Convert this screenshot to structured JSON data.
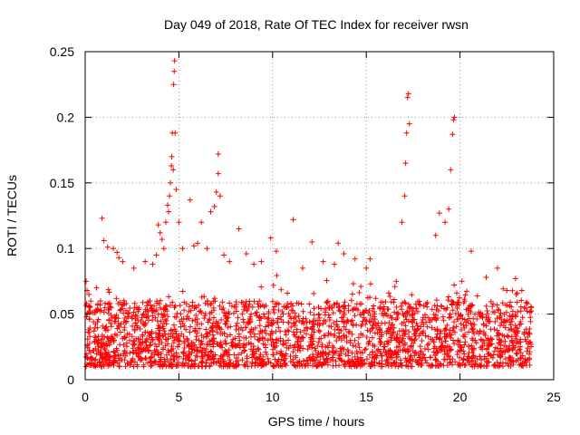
{
  "chart_data": {
    "type": "scatter",
    "title": "Day 049 of 2018, Rate Of TEC Index for receiver rwsn",
    "xlabel": "GPS time / hours",
    "ylabel": "ROTI / TECUs",
    "xlim": [
      0,
      25
    ],
    "ylim": [
      0,
      0.25
    ],
    "xticks": [
      0,
      5,
      10,
      15,
      20,
      25
    ],
    "xtick_labels": [
      "0",
      "5",
      "10",
      "15",
      "20",
      "25"
    ],
    "yticks": [
      0,
      0.05,
      0.1,
      0.15,
      0.2,
      0.25
    ],
    "ytick_labels": [
      "0",
      "0.05",
      "0.1",
      "0.15",
      "0.2",
      "0.25"
    ],
    "grid": true,
    "marker": "+",
    "series": [
      {
        "name": "ROTI",
        "color": "#ff0000",
        "x_range": [
          0,
          23.8
        ],
        "typical_range": [
          0.01,
          0.06
        ],
        "points": [
          [
            0.05,
            0.075
          ],
          [
            0.1,
            0.068
          ],
          [
            0.2,
            0.065
          ],
          [
            0.3,
            0.06
          ],
          [
            0.9,
            0.123
          ],
          [
            1.0,
            0.106
          ],
          [
            1.2,
            0.101
          ],
          [
            1.5,
            0.1
          ],
          [
            1.7,
            0.097
          ],
          [
            1.8,
            0.093
          ],
          [
            2.0,
            0.09
          ],
          [
            2.6,
            0.085
          ],
          [
            3.2,
            0.09
          ],
          [
            3.6,
            0.088
          ],
          [
            3.8,
            0.095
          ],
          [
            3.9,
            0.118
          ],
          [
            4.0,
            0.112
          ],
          [
            4.1,
            0.107
          ],
          [
            4.2,
            0.1
          ],
          [
            4.3,
            0.12
          ],
          [
            4.4,
            0.133
          ],
          [
            4.45,
            0.128
          ],
          [
            4.5,
            0.14
          ],
          [
            4.55,
            0.15
          ],
          [
            4.6,
            0.163
          ],
          [
            4.62,
            0.17
          ],
          [
            4.65,
            0.188
          ],
          [
            4.7,
            0.16
          ],
          [
            4.72,
            0.225
          ],
          [
            4.75,
            0.235
          ],
          [
            4.77,
            0.243
          ],
          [
            4.8,
            0.188
          ],
          [
            4.85,
            0.145
          ],
          [
            5.0,
            0.12
          ],
          [
            5.2,
            0.1
          ],
          [
            5.6,
            0.137
          ],
          [
            5.8,
            0.102
          ],
          [
            6.0,
            0.104
          ],
          [
            6.2,
            0.12
          ],
          [
            6.5,
            0.1
          ],
          [
            6.7,
            0.128
          ],
          [
            6.9,
            0.132
          ],
          [
            7.0,
            0.143
          ],
          [
            7.1,
            0.157
          ],
          [
            7.1,
            0.172
          ],
          [
            7.2,
            0.14
          ],
          [
            7.4,
            0.095
          ],
          [
            7.7,
            0.09
          ],
          [
            8.2,
            0.115
          ],
          [
            8.6,
            0.096
          ],
          [
            9.0,
            0.088
          ],
          [
            9.4,
            0.09
          ],
          [
            9.9,
            0.108
          ],
          [
            10.2,
            0.098
          ],
          [
            11.1,
            0.122
          ],
          [
            11.6,
            0.085
          ],
          [
            12.1,
            0.105
          ],
          [
            12.7,
            0.09
          ],
          [
            13.3,
            0.088
          ],
          [
            13.5,
            0.104
          ],
          [
            13.8,
            0.096
          ],
          [
            14.4,
            0.092
          ],
          [
            15.0,
            0.085
          ],
          [
            15.2,
            0.092
          ],
          [
            16.6,
            0.075
          ],
          [
            16.9,
            0.12
          ],
          [
            17.05,
            0.14
          ],
          [
            17.1,
            0.165
          ],
          [
            17.15,
            0.188
          ],
          [
            17.2,
            0.215
          ],
          [
            17.25,
            0.218
          ],
          [
            17.3,
            0.195
          ],
          [
            18.7,
            0.11
          ],
          [
            18.9,
            0.127
          ],
          [
            19.2,
            0.12
          ],
          [
            19.4,
            0.13
          ],
          [
            19.5,
            0.16
          ],
          [
            19.6,
            0.187
          ],
          [
            19.65,
            0.198
          ],
          [
            19.7,
            0.2
          ],
          [
            20.1,
            0.075
          ],
          [
            20.6,
            0.098
          ],
          [
            21.4,
            0.078
          ],
          [
            22.0,
            0.085
          ],
          [
            22.5,
            0.068
          ],
          [
            23.0,
            0.065
          ],
          [
            23.3,
            0.068
          ],
          [
            23.6,
            0.058
          ],
          [
            23.8,
            0.055
          ]
        ]
      }
    ]
  }
}
